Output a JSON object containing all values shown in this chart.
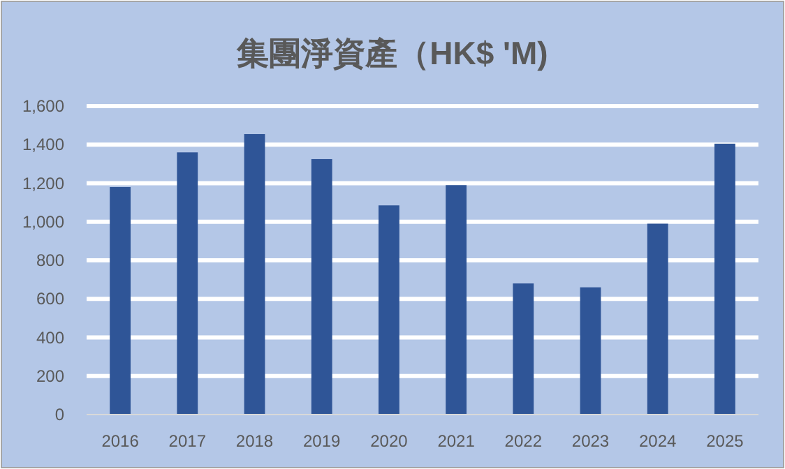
{
  "chart_data": {
    "type": "bar",
    "title": "集團淨資產（HK$ 'M)",
    "categories": [
      "2016",
      "2017",
      "2018",
      "2019",
      "2020",
      "2021",
      "2022",
      "2023",
      "2024",
      "2025"
    ],
    "values": [
      1180,
      1360,
      1455,
      1325,
      1085,
      1190,
      680,
      660,
      990,
      1405
    ],
    "color": "#2f5597",
    "ylim": [
      0,
      1600
    ],
    "yticks": [
      {
        "value": 0,
        "label": "0"
      },
      {
        "value": 200,
        "label": "200"
      },
      {
        "value": 400,
        "label": "400"
      },
      {
        "value": 600,
        "label": "600"
      },
      {
        "value": 800,
        "label": "800"
      },
      {
        "value": 1000,
        "label": "1,000"
      },
      {
        "value": 1200,
        "label": "1,200"
      },
      {
        "value": 1400,
        "label": "1,400"
      },
      {
        "value": 1600,
        "label": "1,600"
      }
    ],
    "grid": "y",
    "legend": false
  }
}
